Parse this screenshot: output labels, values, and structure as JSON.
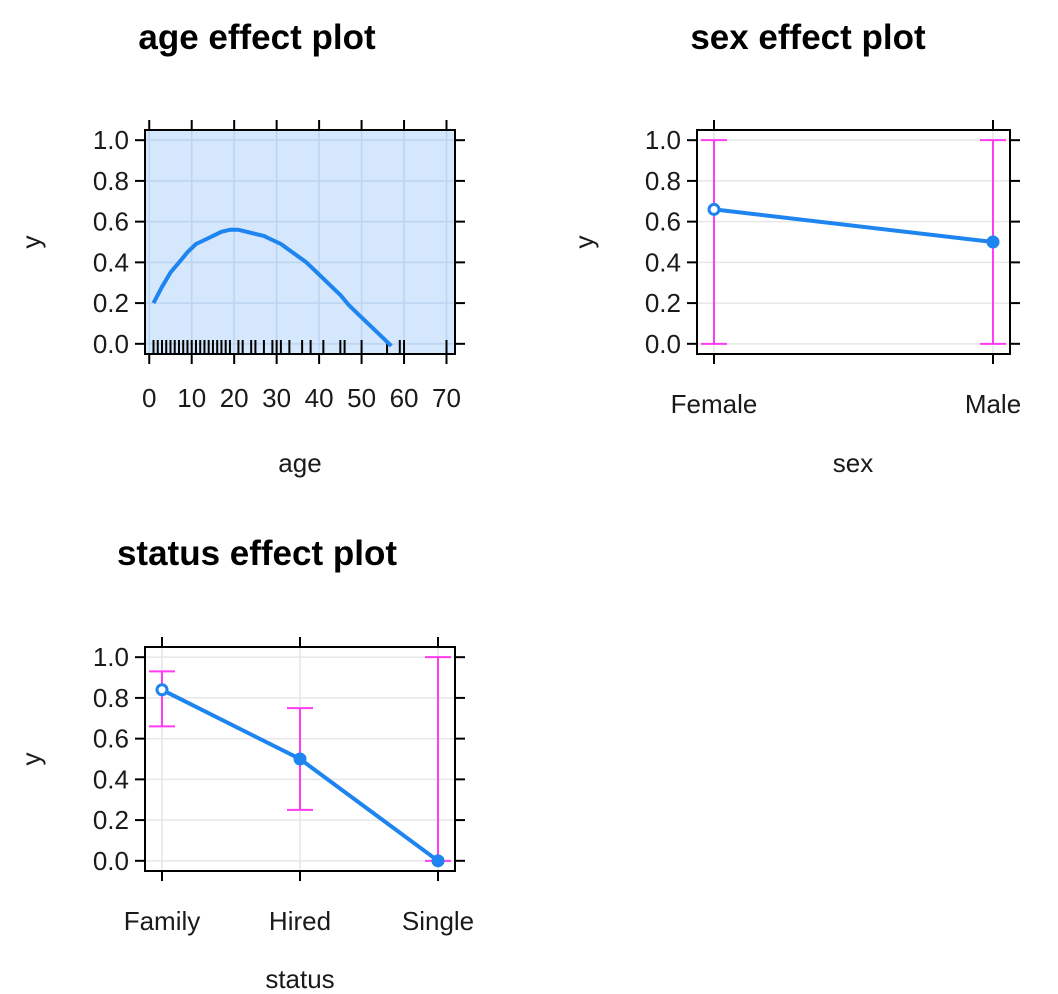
{
  "colors": {
    "fit_line": "#1e84f0",
    "ci_band": "#d4e7fc",
    "error_bar": "#ff3cf2",
    "grid": "#e6e6e6",
    "band_grid": "#bcd4f0",
    "axis": "#000000",
    "rug": "#000000"
  },
  "chart_data": [
    {
      "id": "age",
      "type": "line",
      "title": "age effect plot",
      "xlabel": "age",
      "ylabel": "y",
      "xlim": [
        -1,
        72
      ],
      "ylim": [
        -0.05,
        1.05
      ],
      "x_ticks": [
        0,
        10,
        20,
        30,
        40,
        50,
        60,
        70
      ],
      "y_ticks": [
        "0.0",
        "0.2",
        "0.4",
        "0.6",
        "0.8",
        "1.0"
      ],
      "x": [
        1,
        3,
        5,
        7,
        9,
        11,
        13,
        15,
        17,
        19,
        21,
        23,
        25,
        27,
        29,
        31,
        33,
        35,
        37,
        39,
        41,
        43,
        45,
        47,
        49,
        51,
        53,
        55,
        57
      ],
      "y": [
        0.2,
        0.28,
        0.35,
        0.4,
        0.45,
        0.49,
        0.51,
        0.53,
        0.55,
        0.56,
        0.56,
        0.55,
        0.54,
        0.53,
        0.51,
        0.49,
        0.46,
        0.43,
        0.4,
        0.36,
        0.32,
        0.28,
        0.24,
        0.19,
        0.15,
        0.11,
        0.07,
        0.03,
        -0.01
      ],
      "ci_band": {
        "lower": 0.0,
        "upper": 1.0
      },
      "rug": [
        1,
        2,
        3,
        4,
        5,
        6,
        7,
        8,
        9,
        10,
        11,
        12,
        13,
        14,
        15,
        16,
        17,
        18,
        19,
        21,
        22,
        24,
        25,
        27,
        29,
        30,
        31,
        33,
        36,
        38,
        41,
        45,
        46,
        50,
        56,
        59,
        60,
        70
      ],
      "grid": true
    },
    {
      "id": "sex",
      "type": "line",
      "title": "sex effect plot",
      "xlabel": "sex",
      "ylabel": "y",
      "categories": [
        "Female",
        "Male"
      ],
      "ylim": [
        -0.05,
        1.05
      ],
      "y_ticks": [
        "0.0",
        "0.2",
        "0.4",
        "0.6",
        "0.8",
        "1.0"
      ],
      "values": [
        0.66,
        0.5
      ],
      "lower": [
        0.0,
        0.0
      ],
      "upper": [
        1.0,
        1.0
      ],
      "grid": true
    },
    {
      "id": "status",
      "type": "line",
      "title": "status effect plot",
      "xlabel": "status",
      "ylabel": "y",
      "categories": [
        "Family",
        "Hired",
        "Single"
      ],
      "ylim": [
        -0.05,
        1.05
      ],
      "y_ticks": [
        "0.0",
        "0.2",
        "0.4",
        "0.6",
        "0.8",
        "1.0"
      ],
      "values": [
        0.84,
        0.5,
        0.0
      ],
      "lower": [
        0.66,
        0.25,
        0.0
      ],
      "upper": [
        0.93,
        0.75,
        1.0
      ],
      "grid": true
    }
  ]
}
